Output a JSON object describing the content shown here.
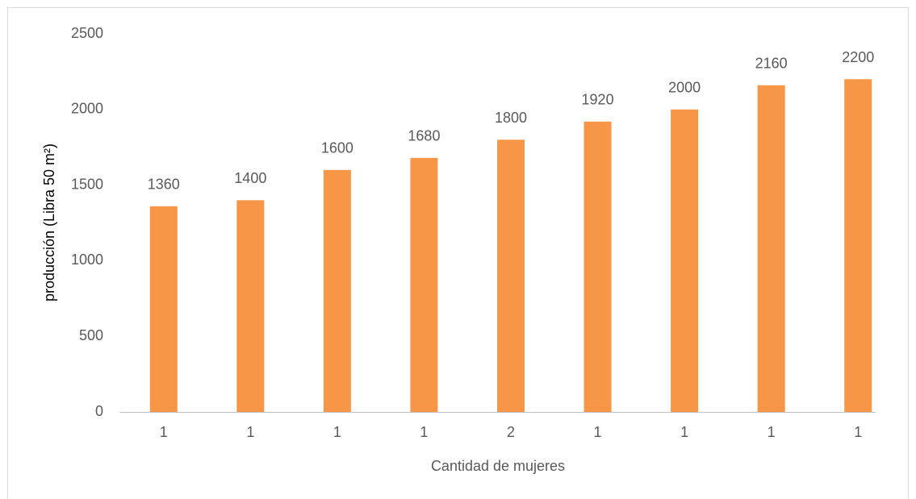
{
  "chart_data": {
    "type": "bar",
    "ylabel": "producción (Libra 50 m²)",
    "xlabel": "Cantidad de mujeres",
    "categories": [
      "1",
      "1",
      "1",
      "1",
      "2",
      "1",
      "1",
      "1",
      "1"
    ],
    "values": [
      1360,
      1400,
      1600,
      1680,
      1800,
      1920,
      2000,
      2160,
      2200
    ],
    "color": "#f79646",
    "ylim": [
      0,
      2500
    ],
    "yticks": [
      0,
      500,
      1000,
      1500,
      2000,
      2500
    ],
    "grid": false
  }
}
